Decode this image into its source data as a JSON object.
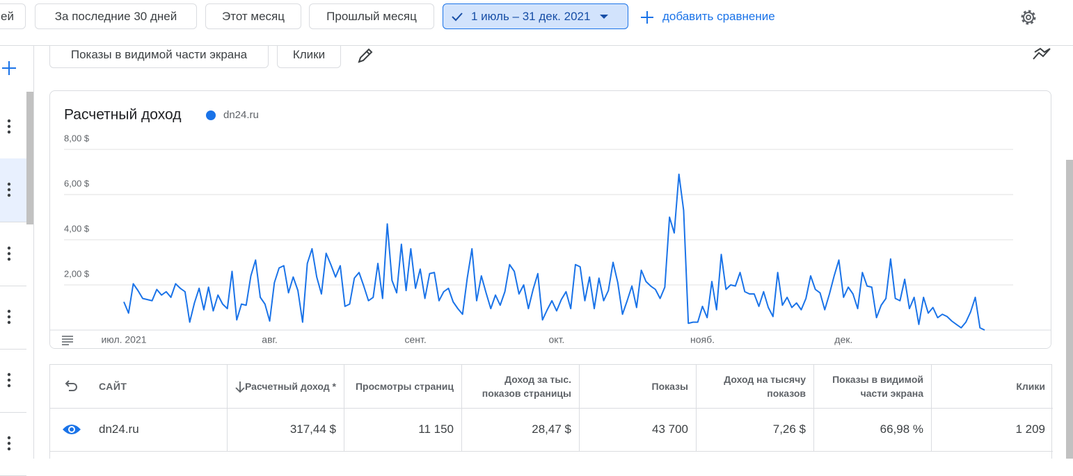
{
  "toolbar": {
    "date_chips": [
      "ей",
      "За последние 30 дней",
      "Этот месяц",
      "Прошлый месяц"
    ],
    "selected_range": "1 июль – 31 дек. 2021",
    "add_comparison": "добавить сравнение"
  },
  "metric_chips": [
    "Показы в видимой части экрана",
    "Клики"
  ],
  "chart_data": {
    "type": "line",
    "title": "Расчетный доход",
    "categories": [
      "июл. 2021",
      null,
      null,
      null,
      null,
      null,
      null,
      null,
      null,
      null,
      null,
      null,
      null,
      null,
      null,
      null,
      null,
      null,
      null,
      null,
      null,
      null,
      null,
      null,
      null,
      null,
      null,
      null,
      null,
      null,
      null,
      "авг.",
      null,
      null,
      null,
      null,
      null,
      null,
      null,
      null,
      null,
      null,
      null,
      null,
      null,
      null,
      null,
      null,
      null,
      null,
      null,
      null,
      null,
      null,
      null,
      null,
      null,
      null,
      null,
      null,
      null,
      null,
      "сент.",
      null,
      null,
      null,
      null,
      null,
      null,
      null,
      null,
      null,
      null,
      null,
      null,
      null,
      null,
      null,
      null,
      null,
      null,
      null,
      null,
      null,
      null,
      null,
      null,
      null,
      null,
      null,
      null,
      null,
      "окт.",
      null,
      null,
      null,
      null,
      null,
      null,
      null,
      null,
      null,
      null,
      null,
      null,
      null,
      null,
      null,
      null,
      null,
      null,
      null,
      null,
      null,
      null,
      null,
      null,
      null,
      null,
      null,
      null,
      null,
      null,
      "нояб.",
      null,
      null,
      null,
      null,
      null,
      null,
      null,
      null,
      null,
      null,
      null,
      null,
      null,
      null,
      null,
      null,
      null,
      null,
      null,
      null,
      null,
      null,
      null,
      null,
      null,
      null,
      null,
      null,
      null,
      "дек.",
      null,
      null,
      null,
      null,
      null,
      null,
      null,
      null,
      null,
      null,
      null,
      null,
      null,
      null,
      null,
      null,
      null,
      null,
      null,
      null,
      null,
      null,
      null,
      null,
      null,
      null,
      null,
      null,
      null,
      null
    ],
    "series": [
      {
        "name": "dn24.ru",
        "color": "#1a73e8",
        "values": [
          1.25,
          0.75,
          2.05,
          1.75,
          1.4,
          1.35,
          1.3,
          1.8,
          1.55,
          1.7,
          1.45,
          2.05,
          1.85,
          1.7,
          0.35,
          1.2,
          1.85,
          0.9,
          1.9,
          0.85,
          1.55,
          1.15,
          0.95,
          2.6,
          0.45,
          1.15,
          1.1,
          2.4,
          3.1,
          1.45,
          1.15,
          0.4,
          2.1,
          2.75,
          2.85,
          1.65,
          2.35,
          1.75,
          0.35,
          2.95,
          3.6,
          2.35,
          1.6,
          3.4,
          2.9,
          2.35,
          2.85,
          1.05,
          1.15,
          2.3,
          2.55,
          1.95,
          1.3,
          1.45,
          2.95,
          1.4,
          4.7,
          2.2,
          1.65,
          3.8,
          1.75,
          3.6,
          1.85,
          2.7,
          1.4,
          2.5,
          2.55,
          1.3,
          1.7,
          1.85,
          1.25,
          0.95,
          0.7,
          2.3,
          3.6,
          1.3,
          2.4,
          1.65,
          0.95,
          1.55,
          1.1,
          1.7,
          2.9,
          2.6,
          1.6,
          2.0,
          0.95,
          1.8,
          2.5,
          0.45,
          0.9,
          1.3,
          0.85,
          1.35,
          1.7,
          0.95,
          2.9,
          2.8,
          1.3,
          2.35,
          0.95,
          2.3,
          1.3,
          1.75,
          3.0,
          2.1,
          0.7,
          1.3,
          1.95,
          1.0,
          2.65,
          2.15,
          1.95,
          1.8,
          1.4,
          1.9,
          5.0,
          4.3,
          6.9,
          5.3,
          0.3,
          0.35,
          0.35,
          1.05,
          0.55,
          2.15,
          0.9,
          3.35,
          1.8,
          2.0,
          1.95,
          2.55,
          1.7,
          1.6,
          1.6,
          1.05,
          1.7,
          1.0,
          0.6,
          2.55,
          1.1,
          1.45,
          1.0,
          1.2,
          0.9,
          1.4,
          2.4,
          1.8,
          1.65,
          0.9,
          1.6,
          2.4,
          3.1,
          1.45,
          1.9,
          1.6,
          0.95,
          2.55,
          1.95,
          1.9,
          0.55,
          1.1,
          1.4,
          3.15,
          1.4,
          1.3,
          2.25,
          0.95,
          1.45,
          0.25,
          1.45,
          0.75,
          1.0,
          0.55,
          0.7,
          0.6,
          0.4,
          0.25,
          0.1,
          0.35,
          0.8,
          1.45,
          0.1,
          0.0
        ]
      }
    ],
    "ylim": [
      0,
      8
    ],
    "yticks": [
      {
        "value": 2,
        "label": "2,00 $"
      },
      {
        "value": 4,
        "label": "4,00 $"
      },
      {
        "value": 6,
        "label": "6,00 $"
      },
      {
        "value": 8,
        "label": "8,00 $"
      }
    ],
    "grid": true
  },
  "table": {
    "columns": [
      "САЙТ",
      "Расчетный доход *",
      "Просмотры страниц",
      "Доход за тыс. показов страницы",
      "Показы",
      "Доход на тысячу показов",
      "Показы в видимой части экрана",
      "Клики"
    ],
    "rows": [
      [
        "dn24.ru",
        "317,44 $",
        "11 150",
        "28,47 $",
        "43 700",
        "7,26 $",
        "66,98 %",
        "1 209"
      ]
    ]
  }
}
